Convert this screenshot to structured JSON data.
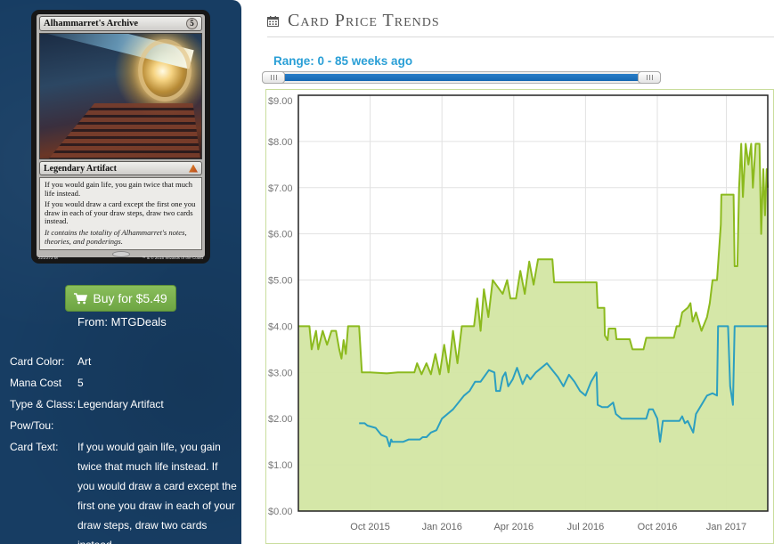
{
  "card": {
    "name": "Alhammarret's Archive",
    "mana_symbol": "5",
    "type_line": "Legendary Artifact",
    "rules_text": [
      "If you would gain life, you gain twice that much life instead.",
      "If you would draw a card except the first one you draw in each of your draw steps, draw two cards instead."
    ],
    "flavor_text": "It contains the totality of Alhammarret's notes, theories, and ponderings.",
    "collector_number": "221/272 M",
    "copyright": "™ & © 2015 Wizards of the Coast"
  },
  "buy": {
    "label": "Buy for $5.49",
    "from_label": "From:",
    "vendor": "MTGDeals"
  },
  "details": [
    {
      "label": "Card Color:",
      "value": "Art"
    },
    {
      "label": "Mana Cost",
      "value": "5"
    },
    {
      "label": "Type & Class:",
      "value": "Legendary Artifact"
    },
    {
      "label": "Pow/Tou:",
      "value": ""
    },
    {
      "label": "Card Text:",
      "value": "If you would gain life, you gain twice that much life instead. If you would draw a card except the first one you draw in each of your draw steps, draw two cards instead."
    }
  ],
  "section": {
    "title": "Card Price Trends",
    "icon": "calendar-icon"
  },
  "range": {
    "label": "Range: 0 - 85 weeks ago",
    "min": 0,
    "max": 85
  },
  "colors": {
    "sidebar_bg": "#173d63",
    "buy_button": "#79b14d",
    "range_text": "#2a9fd6",
    "slider_fill": "#1f72bd",
    "series_a_line": "#8cba1e",
    "series_a_fill": "#d3e6a3",
    "series_b_line": "#2c9fc0"
  },
  "chart_data": {
    "type": "area",
    "title": "",
    "xlabel": "",
    "ylabel": "",
    "x_range": [
      0,
      85
    ],
    "x_unit": "weeks",
    "x_ticks": [
      {
        "label": "Oct 2015",
        "x": 13
      },
      {
        "label": "Jan 2016",
        "x": 26
      },
      {
        "label": "Apr 2016",
        "x": 39
      },
      {
        "label": "Jul 2016",
        "x": 52
      },
      {
        "label": "Oct 2016",
        "x": 65
      },
      {
        "label": "Jan 2017",
        "x": 77.5
      }
    ],
    "ylim": [
      0,
      9
    ],
    "y_ticks": [
      "$0.00",
      "$1.00",
      "$2.00",
      "$3.00",
      "$4.00",
      "$5.00",
      "$6.00",
      "$7.00",
      "$8.00",
      "$9.00"
    ],
    "grid": true,
    "legend": "none",
    "series": [
      {
        "style": "area",
        "points": [
          [
            0,
            4.0
          ],
          [
            2,
            4.0
          ],
          [
            2.4,
            3.5
          ],
          [
            3.2,
            3.9
          ],
          [
            3.6,
            3.5
          ],
          [
            4.4,
            3.9
          ],
          [
            5.2,
            3.6
          ],
          [
            6,
            3.9
          ],
          [
            6.8,
            3.9
          ],
          [
            7.4,
            3.5
          ],
          [
            7.8,
            3.3
          ],
          [
            8.2,
            3.7
          ],
          [
            8.6,
            3.4
          ],
          [
            9,
            4.0
          ],
          [
            11,
            4.0
          ],
          [
            11.5,
            3.0
          ],
          [
            13,
            3.0
          ],
          [
            16,
            2.98
          ],
          [
            18,
            3.0
          ],
          [
            21,
            3.0
          ],
          [
            21.5,
            3.2
          ],
          [
            22.3,
            2.96
          ],
          [
            23.2,
            3.2
          ],
          [
            24,
            2.96
          ],
          [
            24.8,
            3.4
          ],
          [
            25.6,
            2.96
          ],
          [
            26.4,
            3.6
          ],
          [
            27.2,
            3.0
          ],
          [
            28,
            3.9
          ],
          [
            28.8,
            3.2
          ],
          [
            29.6,
            4.0
          ],
          [
            31.8,
            4.0
          ],
          [
            32.4,
            4.6
          ],
          [
            33,
            3.9
          ],
          [
            33.6,
            4.8
          ],
          [
            34.4,
            4.2
          ],
          [
            35.2,
            5.0
          ],
          [
            37,
            4.7
          ],
          [
            37.8,
            5.0
          ],
          [
            38.4,
            4.6
          ],
          [
            39.4,
            4.6
          ],
          [
            40.2,
            5.2
          ],
          [
            41,
            4.7
          ],
          [
            41.8,
            5.4
          ],
          [
            42.6,
            4.9
          ],
          [
            43.4,
            5.45
          ],
          [
            46,
            5.45
          ],
          [
            46.3,
            4.95
          ],
          [
            53,
            4.95
          ],
          [
            54,
            4.95
          ],
          [
            54.2,
            4.4
          ],
          [
            55.4,
            4.4
          ],
          [
            55.5,
            3.8
          ],
          [
            56,
            3.7
          ],
          [
            56.2,
            3.95
          ],
          [
            57.4,
            3.95
          ],
          [
            57.6,
            3.72
          ],
          [
            60,
            3.72
          ],
          [
            60.5,
            3.5
          ],
          [
            62.5,
            3.5
          ],
          [
            63,
            3.75
          ],
          [
            68,
            3.75
          ],
          [
            68.5,
            4.0
          ],
          [
            69,
            4.0
          ],
          [
            69.5,
            4.3
          ],
          [
            70.5,
            4.4
          ],
          [
            71,
            4.5
          ],
          [
            71.4,
            4.1
          ],
          [
            72,
            4.3
          ],
          [
            73,
            3.9
          ],
          [
            74,
            4.2
          ],
          [
            74.5,
            4.5
          ],
          [
            75,
            5.0
          ],
          [
            75.8,
            5.0
          ],
          [
            76.5,
            6.2
          ],
          [
            76.6,
            6.85
          ],
          [
            78.8,
            6.85
          ],
          [
            79,
            5.3
          ],
          [
            79.5,
            5.3
          ],
          [
            79.8,
            7.0
          ],
          [
            80.2,
            7.95
          ],
          [
            80.5,
            6.8
          ],
          [
            81,
            7.95
          ],
          [
            81.5,
            7.5
          ],
          [
            82,
            7.95
          ],
          [
            82.3,
            7.0
          ],
          [
            82.8,
            7.95
          ],
          [
            83.5,
            7.95
          ],
          [
            83.8,
            6.0
          ],
          [
            84.2,
            7.4
          ],
          [
            84.5,
            6.4
          ],
          [
            84.8,
            7.4
          ],
          [
            85,
            7.0
          ]
        ]
      },
      {
        "style": "line",
        "points": [
          [
            11,
            1.9
          ],
          [
            12,
            1.9
          ],
          [
            12.5,
            1.85
          ],
          [
            14,
            1.8
          ],
          [
            15,
            1.65
          ],
          [
            16,
            1.6
          ],
          [
            16.5,
            1.4
          ],
          [
            16.8,
            1.55
          ],
          [
            17,
            1.5
          ],
          [
            19,
            1.5
          ],
          [
            20,
            1.55
          ],
          [
            22,
            1.55
          ],
          [
            22.5,
            1.6
          ],
          [
            23.2,
            1.6
          ],
          [
            24,
            1.7
          ],
          [
            25,
            1.75
          ],
          [
            26,
            2.0
          ],
          [
            28,
            2.2
          ],
          [
            30,
            2.5
          ],
          [
            31,
            2.6
          ],
          [
            32,
            2.8
          ],
          [
            33,
            2.8
          ],
          [
            34.5,
            3.05
          ],
          [
            35.5,
            3.0
          ],
          [
            35.8,
            2.6
          ],
          [
            36.5,
            2.6
          ],
          [
            37,
            2.9
          ],
          [
            37.5,
            3.0
          ],
          [
            38,
            2.7
          ],
          [
            38.8,
            2.85
          ],
          [
            39.6,
            3.1
          ],
          [
            40.6,
            2.75
          ],
          [
            41.4,
            2.95
          ],
          [
            42,
            2.85
          ],
          [
            43,
            3.0
          ],
          [
            45,
            3.2
          ],
          [
            46,
            3.05
          ],
          [
            47,
            2.9
          ],
          [
            48,
            2.7
          ],
          [
            49,
            2.95
          ],
          [
            50,
            2.8
          ],
          [
            51,
            2.6
          ],
          [
            52,
            2.5
          ],
          [
            53,
            2.8
          ],
          [
            54,
            3.0
          ],
          [
            54.2,
            2.3
          ],
          [
            55,
            2.25
          ],
          [
            56,
            2.25
          ],
          [
            57,
            2.35
          ],
          [
            57.5,
            2.1
          ],
          [
            58.5,
            2.0
          ],
          [
            63,
            2.0
          ],
          [
            63.5,
            2.2
          ],
          [
            64.2,
            2.2
          ],
          [
            65,
            2.0
          ],
          [
            65.5,
            1.5
          ],
          [
            66,
            1.95
          ],
          [
            69,
            1.95
          ],
          [
            69.5,
            2.05
          ],
          [
            70,
            1.9
          ],
          [
            70.5,
            1.95
          ],
          [
            71.5,
            1.7
          ],
          [
            72,
            2.1
          ],
          [
            73,
            2.3
          ],
          [
            74,
            2.5
          ],
          [
            75,
            2.55
          ],
          [
            75.8,
            2.5
          ],
          [
            76,
            4.0
          ],
          [
            77.8,
            4.0
          ],
          [
            78.2,
            2.7
          ],
          [
            78.7,
            2.3
          ],
          [
            79,
            4.0
          ],
          [
            85,
            4.0
          ]
        ]
      }
    ]
  }
}
